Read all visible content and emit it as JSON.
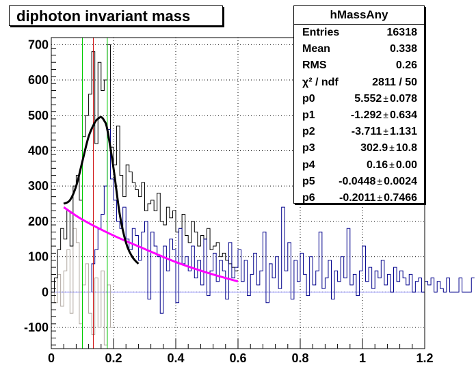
{
  "title": "diphoton invariant mass",
  "stats": {
    "name": "hMassAny",
    "rows": [
      {
        "key": "Entries",
        "value": "16318"
      },
      {
        "key": "Mean",
        "value": "0.338"
      },
      {
        "key": "RMS",
        "value": "0.26"
      },
      {
        "key": "χ² / ndf",
        "value": "2811 / 50"
      },
      {
        "key": "p0",
        "value": "5.552",
        "err": "0.078"
      },
      {
        "key": "p1",
        "value": "-1.292",
        "err": "0.634"
      },
      {
        "key": "p2",
        "value": "-3.711",
        "err": "1.131"
      },
      {
        "key": "p3",
        "value": "302.9",
        "err": "10.8"
      },
      {
        "key": "p4",
        "value": "0.16",
        "err": "0.00"
      },
      {
        "key": "p5",
        "value": "-0.0448",
        "err": "0.0024"
      },
      {
        "key": "p6",
        "value": "-0.2011",
        "err": "0.7466"
      }
    ]
  },
  "colors": {
    "total_hist": "#000000",
    "signal_hist": "#00008b",
    "low_hist": "#b0a8a0",
    "fit": "#000000",
    "background_fit": "#ff00ff",
    "peak_line": "#cc0000",
    "window_lines": "#00cc00",
    "zero_line": "#a0a0ff",
    "grid": "#000000"
  },
  "chart_data": {
    "type": "line",
    "title": "diphoton invariant mass",
    "xlabel": "",
    "ylabel": "",
    "xlim": [
      0,
      1.2
    ],
    "ylim": [
      -160,
      720
    ],
    "x_ticks": [
      "0",
      "0.2",
      "0.4",
      "0.6",
      "0.8",
      "1",
      "1.2"
    ],
    "y_ticks": [
      "-100",
      "0",
      "100",
      "200",
      "300",
      "400",
      "500",
      "600",
      "700"
    ],
    "grid": true,
    "bin_width": 0.01,
    "vertical_lines": {
      "peak": 0.135,
      "window": [
        0.1,
        0.18
      ]
    },
    "series": [
      {
        "color_key": "total_hist",
        "x_start": 0.0,
        "values": [
          0,
          40,
          120,
          180,
          150,
          230,
          130,
          300,
          330,
          260,
          440,
          500,
          560,
          680,
          420,
          650,
          570,
          600,
          700,
          410,
          360,
          470,
          330,
          270,
          360,
          340,
          310,
          290,
          270,
          310,
          230,
          250,
          260,
          230,
          280,
          200,
          190,
          240,
          210,
          230,
          170,
          180,
          220,
          160,
          140,
          200,
          170,
          130,
          160,
          150,
          180,
          120,
          130,
          140,
          100,
          110,
          90,
          80,
          70,
          60
        ]
      },
      {
        "color_key": "signal_hist",
        "x_start": 0.13,
        "values": [
          80,
          120,
          180,
          220,
          300,
          460,
          320,
          260,
          200,
          180,
          240,
          150,
          120,
          180,
          160,
          90,
          170,
          200,
          -20,
          170,
          130,
          100,
          -60,
          130,
          60,
          150,
          120,
          -30,
          180,
          80,
          100,
          60,
          130,
          40,
          90,
          20,
          150,
          -10,
          60,
          110,
          30,
          90,
          60,
          -20,
          140,
          40,
          70,
          120,
          30,
          90,
          -10,
          50,
          110,
          20,
          60,
          170,
          -30,
          80,
          40,
          100,
          10,
          240,
          60,
          140,
          -20,
          90,
          30,
          110,
          50,
          -10,
          100,
          20,
          60,
          170,
          10,
          40,
          90,
          -20,
          60,
          30,
          100,
          40,
          180,
          20,
          50,
          -10,
          60,
          130,
          30,
          70,
          10,
          60,
          40,
          90,
          20,
          50,
          0,
          70,
          30,
          60,
          40,
          20,
          50,
          0,
          30,
          40,
          0,
          30,
          20,
          40,
          0,
          30,
          10,
          0,
          40,
          0,
          0,
          0,
          40,
          0,
          0,
          0,
          40
        ]
      },
      {
        "color_key": "low_hist",
        "x_start": 0.01,
        "values": [
          -30,
          50,
          -40,
          60,
          120,
          -60,
          180,
          140,
          -90,
          20,
          80,
          -60,
          -120,
          40,
          -100,
          60,
          -150,
          20,
          -100
        ]
      }
    ],
    "fit_curve": {
      "color_key": "fit",
      "x": [
        0.04,
        0.06,
        0.08,
        0.1,
        0.12,
        0.14,
        0.15,
        0.16,
        0.17,
        0.18,
        0.2,
        0.22,
        0.24,
        0.26,
        0.28
      ],
      "y": [
        250,
        260,
        300,
        370,
        440,
        480,
        490,
        495,
        485,
        460,
        350,
        220,
        140,
        100,
        80
      ]
    },
    "background_fit": {
      "color_key": "background_fit",
      "x": [
        0.04,
        0.1,
        0.2,
        0.3,
        0.4,
        0.5,
        0.6
      ],
      "y": [
        240,
        205,
        160,
        122,
        85,
        55,
        30
      ]
    }
  }
}
